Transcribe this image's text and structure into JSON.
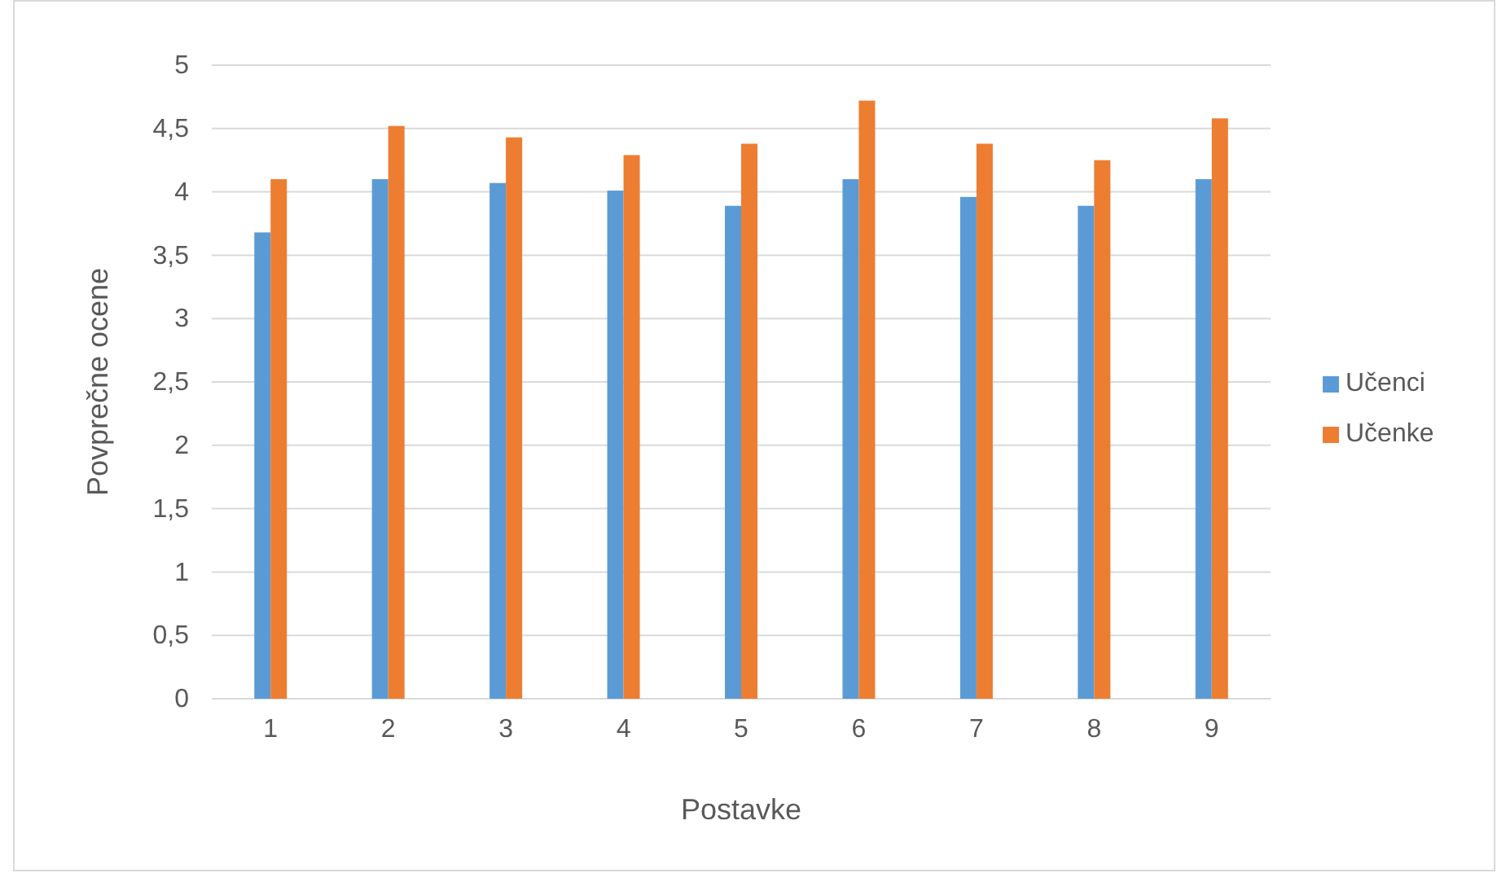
{
  "chart_data": {
    "type": "bar",
    "xlabel": "Postavke",
    "ylabel": "Povprečne ocene",
    "categories": [
      "1",
      "2",
      "3",
      "4",
      "5",
      "6",
      "7",
      "8",
      "9"
    ],
    "series": [
      {
        "name": "Učenci",
        "color": "#5b9bd5",
        "values": [
          3.68,
          4.1,
          4.07,
          4.01,
          3.89,
          4.1,
          3.96,
          3.89,
          4.1
        ]
      },
      {
        "name": "Učenke",
        "color": "#ed7d31",
        "values": [
          4.1,
          4.52,
          4.43,
          4.29,
          4.38,
          4.72,
          4.38,
          4.25,
          4.58
        ]
      }
    ],
    "ylim": [
      0,
      5
    ],
    "yticks": [
      0,
      {
        "value": 0.5,
        "label": "0,5"
      },
      1,
      {
        "value": 1.5,
        "label": "1,5"
      },
      2,
      {
        "value": 2.5,
        "label": "2,5"
      },
      3,
      {
        "value": 3.5,
        "label": "3,5"
      },
      4,
      {
        "value": 4.5,
        "label": "4,5"
      },
      5
    ],
    "grid": "y",
    "legend": "right"
  }
}
